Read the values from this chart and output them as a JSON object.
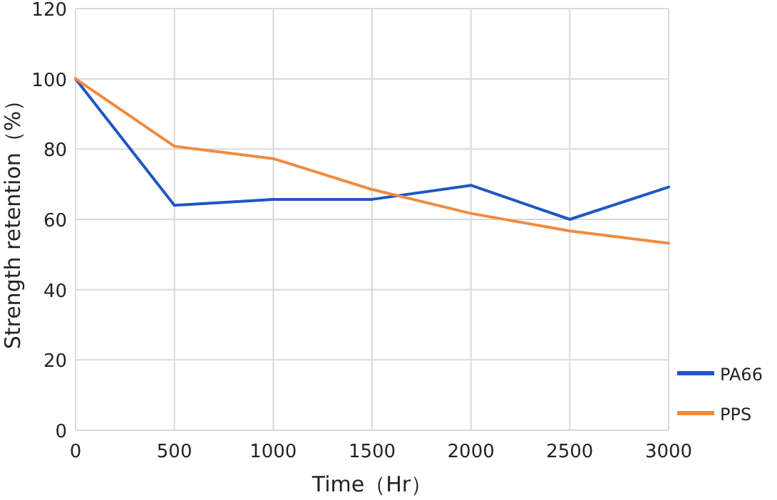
{
  "chart_data": {
    "type": "line",
    "xlabel": "Time（Hr）",
    "ylabel": "Strength retention（%）",
    "x": [
      0,
      500,
      1000,
      1500,
      2000,
      2500,
      3000
    ],
    "series": [
      {
        "name": "PA66",
        "color": "#1f57c3",
        "values": [
          100,
          64,
          65.7,
          65.7,
          69.7,
          60,
          69.2
        ]
      },
      {
        "name": "PPS",
        "color": "#f28a3e",
        "values": [
          100,
          80.8,
          77.3,
          68.5,
          61.7,
          56.7,
          53.2
        ]
      }
    ],
    "xlim": [
      0,
      3000
    ],
    "xticks": [
      0,
      500,
      1000,
      1500,
      2000,
      2500,
      3000
    ],
    "ylim": [
      0,
      120
    ],
    "yticks": [
      0,
      20,
      40,
      60,
      80,
      100,
      120
    ],
    "grid": true,
    "legend": "bottom right",
    "marker": "none",
    "line_style": "solid"
  }
}
